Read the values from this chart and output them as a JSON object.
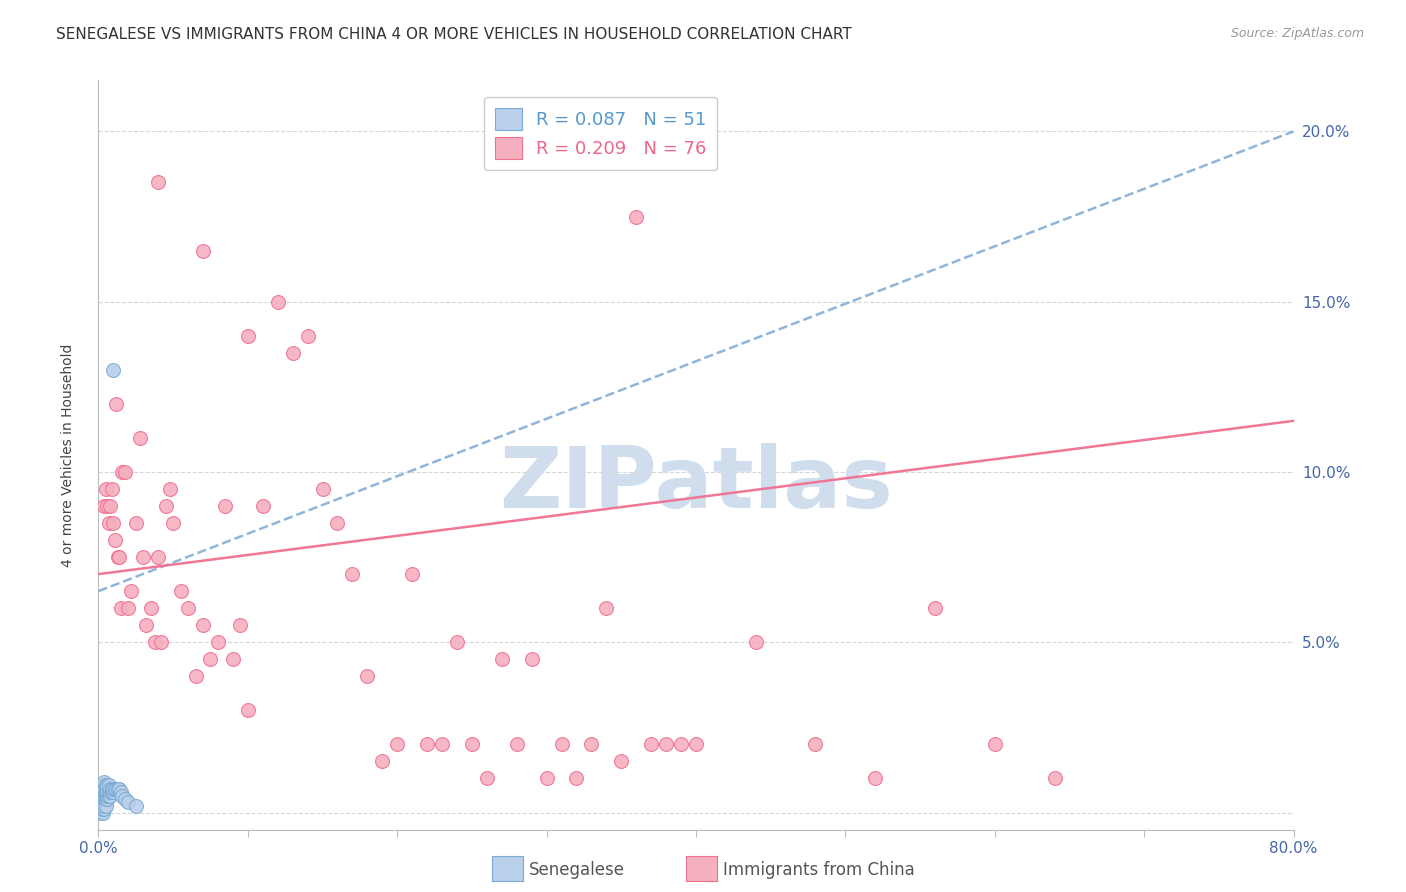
{
  "title": "SENEGALESE VS IMMIGRANTS FROM CHINA 4 OR MORE VEHICLES IN HOUSEHOLD CORRELATION CHART",
  "source": "Source: ZipAtlas.com",
  "ylabel": "4 or more Vehicles in Household",
  "xlim": [
    0.0,
    0.8
  ],
  "ylim": [
    -0.005,
    0.215
  ],
  "yticks": [
    0.0,
    0.05,
    0.1,
    0.15,
    0.2
  ],
  "xticks": [
    0.0,
    0.1,
    0.2,
    0.3,
    0.4,
    0.5,
    0.6,
    0.7,
    0.8
  ],
  "xtick_labels": [
    "0.0%",
    "",
    "",
    "",
    "",
    "",
    "",
    "",
    "80.0%"
  ],
  "right_ytick_labels": [
    "5.0%",
    "10.0%",
    "15.0%",
    "20.0%"
  ],
  "right_ytick_vals": [
    0.05,
    0.1,
    0.15,
    0.2
  ],
  "senegalese_color": "#b8d0ea",
  "china_color": "#f5b0c0",
  "trend_blue_color": "#7baad4",
  "trend_pink_color": "#f07090",
  "trend_blue_start": 0.065,
  "trend_blue_end": 0.2,
  "trend_pink_start": 0.07,
  "trend_pink_end": 0.115,
  "R_senegalese": 0.087,
  "N_senegalese": 51,
  "R_china": 0.209,
  "N_china": 76,
  "watermark": "ZIPatlas",
  "watermark_color": "#d0dded",
  "legend_label_1": "Senegalese",
  "legend_label_2": "Immigrants from China",
  "title_fontsize": 11,
  "axis_label_fontsize": 10,
  "tick_fontsize": 11,
  "legend_r_color_1": "#5599cc",
  "legend_n_color_1": "#5599cc",
  "legend_r_color_2": "#ee6688",
  "legend_n_color_2": "#ee6688",
  "point_size": 100,
  "sen_x": [
    0.001,
    0.001,
    0.001,
    0.002,
    0.002,
    0.002,
    0.002,
    0.002,
    0.003,
    0.003,
    0.003,
    0.003,
    0.003,
    0.003,
    0.004,
    0.004,
    0.004,
    0.004,
    0.004,
    0.004,
    0.004,
    0.005,
    0.005,
    0.005,
    0.005,
    0.005,
    0.005,
    0.006,
    0.006,
    0.006,
    0.006,
    0.007,
    0.007,
    0.007,
    0.008,
    0.008,
    0.008,
    0.009,
    0.009,
    0.01,
    0.01,
    0.011,
    0.012,
    0.013,
    0.014,
    0.015,
    0.016,
    0.018,
    0.02,
    0.025,
    0.01
  ],
  "sen_y": [
    0.001,
    0.002,
    0.005,
    0.0,
    0.001,
    0.002,
    0.004,
    0.007,
    0.0,
    0.001,
    0.003,
    0.005,
    0.006,
    0.008,
    0.001,
    0.002,
    0.004,
    0.005,
    0.006,
    0.007,
    0.009,
    0.002,
    0.004,
    0.005,
    0.006,
    0.007,
    0.008,
    0.004,
    0.005,
    0.006,
    0.008,
    0.005,
    0.006,
    0.008,
    0.005,
    0.006,
    0.007,
    0.006,
    0.007,
    0.006,
    0.007,
    0.007,
    0.007,
    0.007,
    0.007,
    0.006,
    0.005,
    0.004,
    0.003,
    0.002,
    0.13
  ],
  "china_x": [
    0.004,
    0.005,
    0.006,
    0.007,
    0.008,
    0.009,
    0.01,
    0.011,
    0.012,
    0.013,
    0.014,
    0.015,
    0.016,
    0.018,
    0.02,
    0.022,
    0.025,
    0.028,
    0.03,
    0.032,
    0.035,
    0.038,
    0.04,
    0.042,
    0.045,
    0.048,
    0.05,
    0.055,
    0.06,
    0.065,
    0.07,
    0.075,
    0.08,
    0.085,
    0.09,
    0.095,
    0.1,
    0.11,
    0.12,
    0.13,
    0.14,
    0.15,
    0.16,
    0.17,
    0.18,
    0.19,
    0.2,
    0.21,
    0.22,
    0.23,
    0.24,
    0.25,
    0.26,
    0.27,
    0.28,
    0.29,
    0.3,
    0.31,
    0.32,
    0.33,
    0.34,
    0.35,
    0.36,
    0.37,
    0.38,
    0.39,
    0.4,
    0.44,
    0.48,
    0.52,
    0.56,
    0.6,
    0.64,
    0.04,
    0.07,
    0.1
  ],
  "china_y": [
    0.09,
    0.095,
    0.09,
    0.085,
    0.09,
    0.095,
    0.085,
    0.08,
    0.12,
    0.075,
    0.075,
    0.06,
    0.1,
    0.1,
    0.06,
    0.065,
    0.085,
    0.11,
    0.075,
    0.055,
    0.06,
    0.05,
    0.075,
    0.05,
    0.09,
    0.095,
    0.085,
    0.065,
    0.06,
    0.04,
    0.055,
    0.045,
    0.05,
    0.09,
    0.045,
    0.055,
    0.03,
    0.09,
    0.15,
    0.135,
    0.14,
    0.095,
    0.085,
    0.07,
    0.04,
    0.015,
    0.02,
    0.07,
    0.02,
    0.02,
    0.05,
    0.02,
    0.01,
    0.045,
    0.02,
    0.045,
    0.01,
    0.02,
    0.01,
    0.02,
    0.06,
    0.015,
    0.175,
    0.02,
    0.02,
    0.02,
    0.02,
    0.05,
    0.02,
    0.01,
    0.06,
    0.02,
    0.01,
    0.185,
    0.165,
    0.14
  ]
}
